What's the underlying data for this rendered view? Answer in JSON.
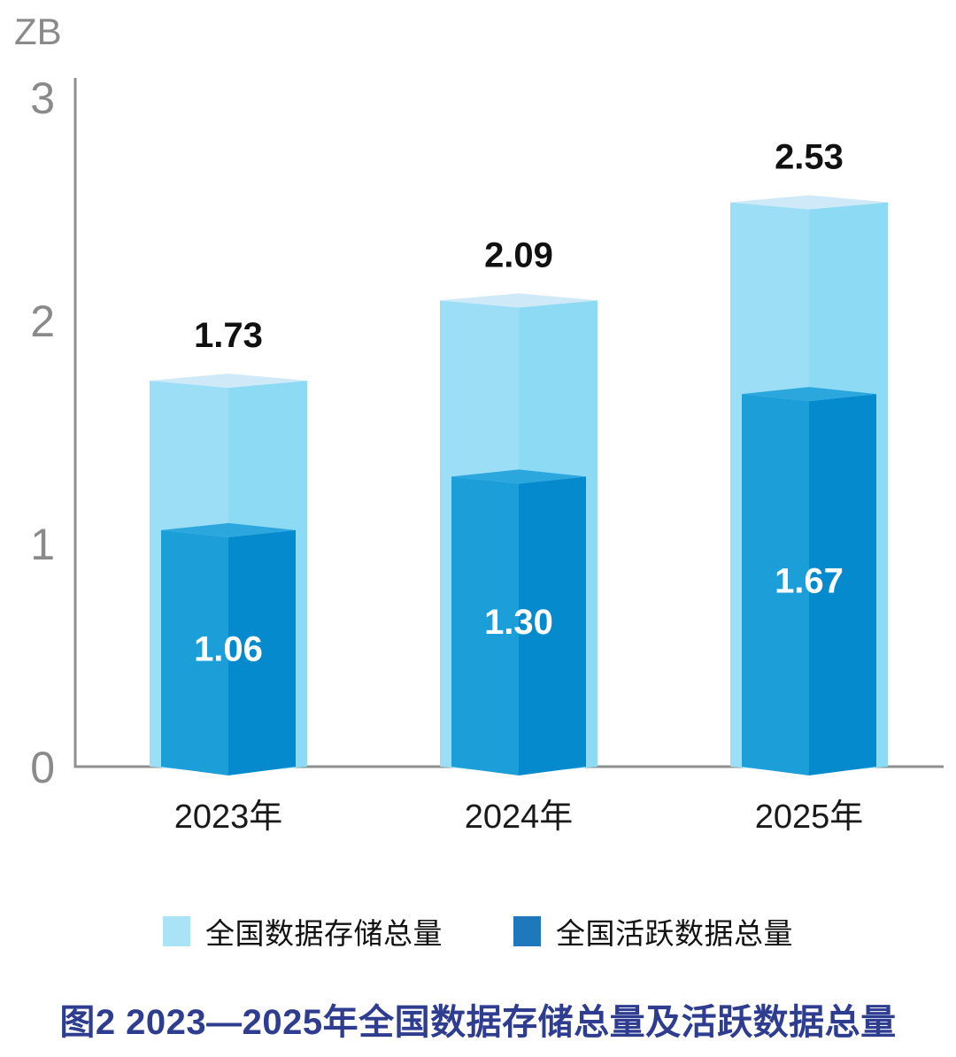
{
  "y_axis": {
    "unit_label": "ZB"
  },
  "chart_data": {
    "type": "bar",
    "style": "3d-nested-bars",
    "title": "图2 2023—2025年全国数据存储总量及活跃数据总量",
    "unit": "ZB",
    "categories": [
      "2023年",
      "2024年",
      "2025年"
    ],
    "series": [
      {
        "name": "全国数据存储总量",
        "values": [
          1.73,
          2.09,
          2.53
        ],
        "data_labels": [
          "1.73",
          "2.09",
          "2.53"
        ]
      },
      {
        "name": "全国活跃数据总量",
        "values": [
          1.06,
          1.3,
          1.67
        ],
        "data_labels": [
          "1.06",
          "1.30",
          "1.67"
        ]
      }
    ],
    "ylim": [
      0,
      3
    ],
    "yticks": [
      0,
      1,
      2,
      3
    ],
    "grid": false,
    "legend_position": "bottom"
  },
  "colors": {
    "storage_top": "#cfe9f9",
    "storage_left": "#9bdef5",
    "storage_right": "#8cdaf3",
    "active_top": "#2ba7de",
    "active_left": "#1c9ed9",
    "active_right": "#058ace",
    "legend_storage": "#abe3f6",
    "legend_active": "#1f78bc",
    "axis": "#8f8f8f",
    "tick_label": "#8a8a8a",
    "unit_label": "#8a8a8a",
    "category_label": "#1a1a1a",
    "value_label": "#111111",
    "inner_value_label": "#ffffff",
    "title": "#2e3d90"
  }
}
